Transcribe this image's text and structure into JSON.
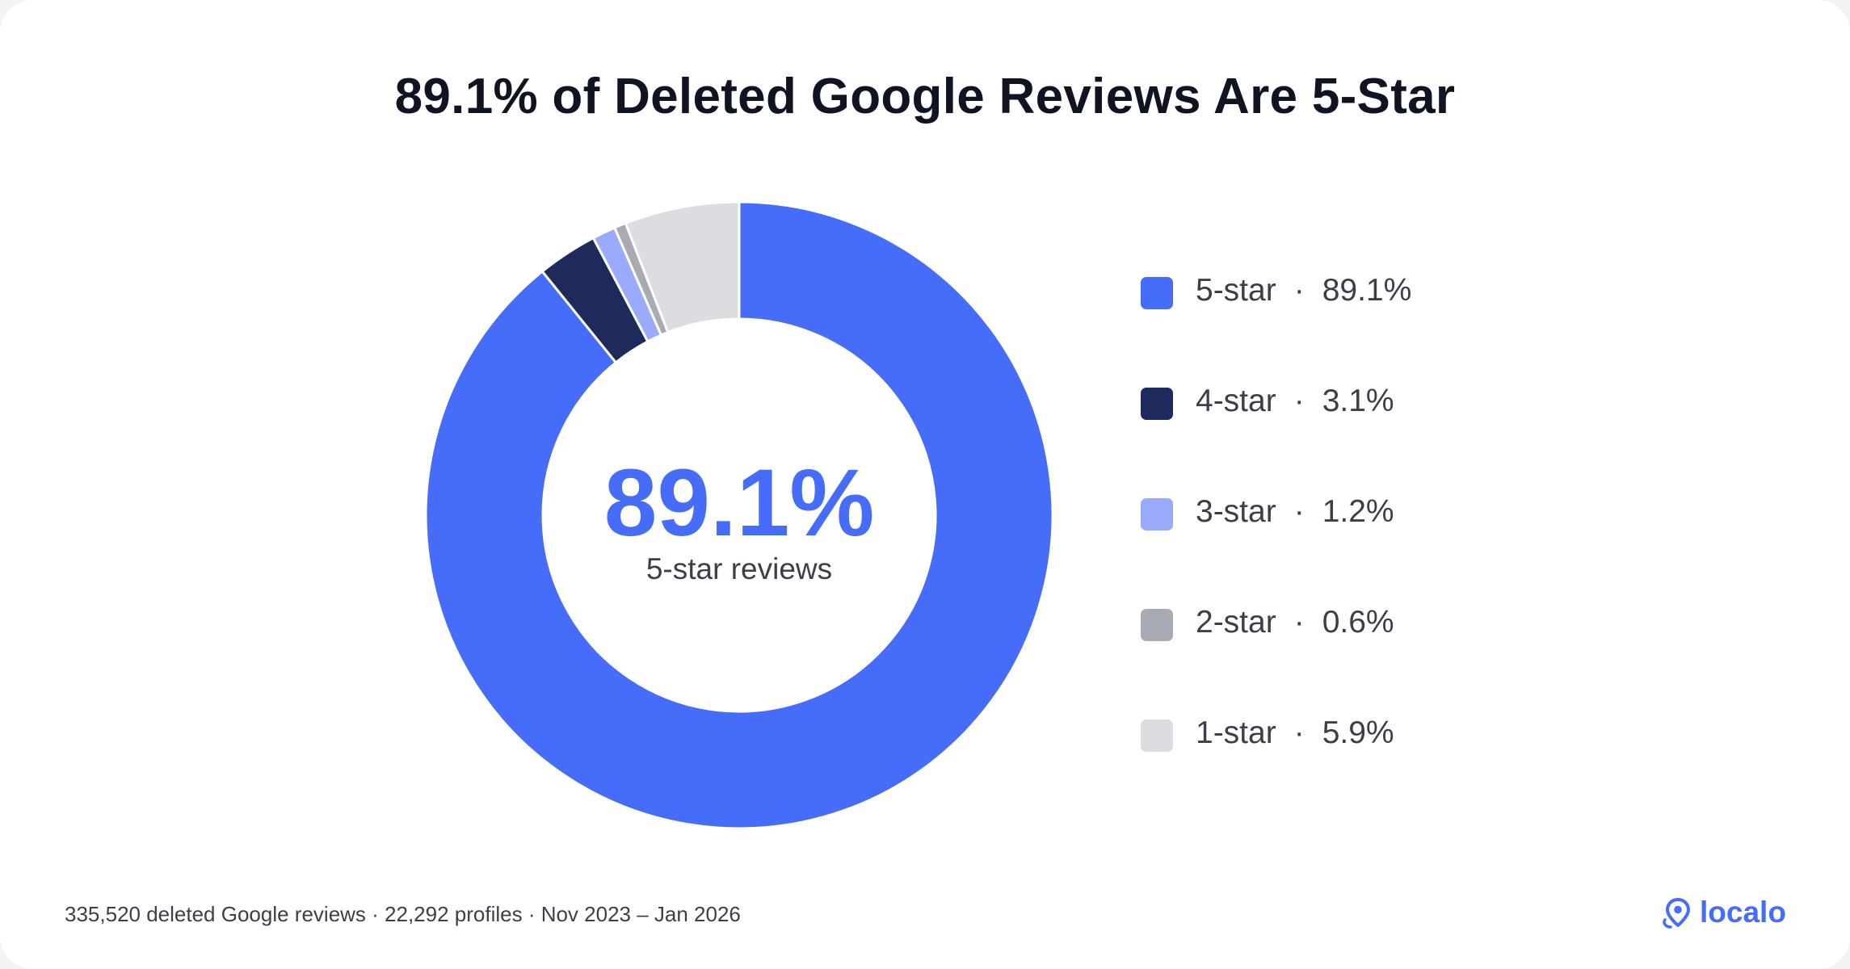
{
  "title": "89.1% of Deleted Google Reviews Are 5-Star",
  "center": {
    "value": "89.1%",
    "label": "5-star reviews"
  },
  "legend_separator": "·",
  "chart_data": {
    "type": "pie",
    "variant": "donut",
    "title": "89.1% of Deleted Google Reviews Are 5-Star",
    "legend_placement": "right",
    "slices": [
      {
        "label": "5-star",
        "value": 89.1,
        "value_label": "89.1%",
        "color": "#466cfa"
      },
      {
        "label": "4-star",
        "value": 3.1,
        "value_label": "3.1%",
        "color": "#1e2a5c"
      },
      {
        "label": "3-star",
        "value": 1.2,
        "value_label": "1.2%",
        "color": "#9aabfb"
      },
      {
        "label": "2-star",
        "value": 0.6,
        "value_label": "0.6%",
        "color": "#a8abb3"
      },
      {
        "label": "1-star",
        "value": 5.9,
        "value_label": "5.9%",
        "color": "#dcdde0"
      }
    ]
  },
  "footnote": "335,520 deleted Google reviews · 22,292 profiles · Nov 2023 – Jan 2026",
  "brand": {
    "name": "localo",
    "icon": "location-pin-icon",
    "color": "#466cfa"
  }
}
